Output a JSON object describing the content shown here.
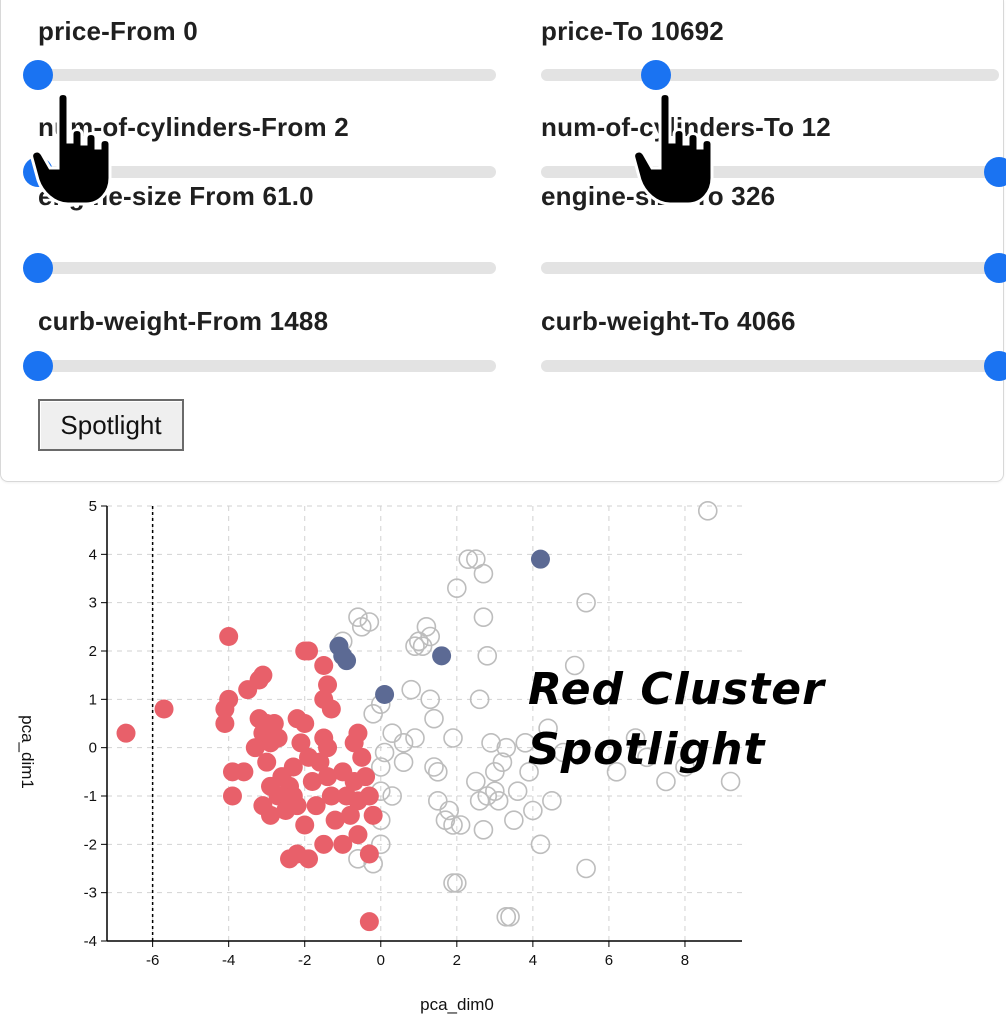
{
  "filters": [
    {
      "label": "price-From 0",
      "value": 0.0
    },
    {
      "label": "price-To 10692",
      "value": 0.25
    },
    {
      "label": "num-of-cylinders-From 2",
      "value": 0.0
    },
    {
      "label": "num-of-cylinders-To 12",
      "value": 1.0
    },
    {
      "label": "engine-size From 61.0",
      "value": 0.0
    },
    {
      "label": "engine-size-To 326",
      "value": 1.0
    },
    {
      "label": "curb-weight-From 1488",
      "value": 0.0
    },
    {
      "label": "curb-weight-To 4066",
      "value": 1.0
    }
  ],
  "spotlight_button": {
    "label": "Spotlight"
  },
  "annotation": {
    "line1": "Red Cluster",
    "line2": "Spotlight"
  },
  "icons": {
    "cursor": "pointing-hand-icon"
  },
  "colors": {
    "accent": "#1a73f2",
    "red_cluster": "#e8606a",
    "blue_highlight": "#5c6a94",
    "outline": "#bdbdbd"
  },
  "chart_data": {
    "type": "scatter",
    "xlabel": "pca_dim0",
    "ylabel": "pca_dim1",
    "xlim": [
      -7.2,
      9.5
    ],
    "ylim": [
      -4,
      5
    ],
    "xticks": [
      -6,
      -4,
      -2,
      0,
      2,
      4,
      6,
      8
    ],
    "yticks": [
      -4,
      -3,
      -2,
      -1,
      0,
      1,
      2,
      3,
      4,
      5
    ],
    "grid": true,
    "reference_line_x": -6,
    "series": [
      {
        "style": "red-filled",
        "points": [
          [
            -6.7,
            0.3
          ],
          [
            -5.7,
            0.8
          ],
          [
            -4.0,
            2.3
          ],
          [
            -4.1,
            0.8
          ],
          [
            -4.1,
            0.5
          ],
          [
            -4.0,
            1.0
          ],
          [
            -3.9,
            -0.5
          ],
          [
            -3.6,
            -0.5
          ],
          [
            -3.9,
            -1.0
          ],
          [
            -3.5,
            1.2
          ],
          [
            -3.2,
            1.4
          ],
          [
            -3.1,
            1.5
          ],
          [
            -3.2,
            0.6
          ],
          [
            -3.1,
            0.3
          ],
          [
            -3.0,
            0.5
          ],
          [
            -2.9,
            0.1
          ],
          [
            -3.3,
            0.0
          ],
          [
            -2.8,
            0.5
          ],
          [
            -2.7,
            0.2
          ],
          [
            -3.0,
            -0.3
          ],
          [
            -2.9,
            -0.8
          ],
          [
            -3.1,
            -1.2
          ],
          [
            -2.9,
            -1.4
          ],
          [
            -2.7,
            -1.0
          ],
          [
            -2.6,
            -0.6
          ],
          [
            -2.5,
            -1.3
          ],
          [
            -2.4,
            -0.8
          ],
          [
            -2.3,
            -0.4
          ],
          [
            -2.3,
            -1.0
          ],
          [
            -2.2,
            -1.2
          ],
          [
            -2.2,
            0.6
          ],
          [
            -2.1,
            0.1
          ],
          [
            -2.0,
            2.0
          ],
          [
            -1.9,
            2.0
          ],
          [
            -2.0,
            0.5
          ],
          [
            -1.9,
            -0.2
          ],
          [
            -1.8,
            -0.7
          ],
          [
            -1.7,
            -1.2
          ],
          [
            -2.0,
            -1.6
          ],
          [
            -2.2,
            -2.2
          ],
          [
            -2.4,
            -2.3
          ],
          [
            -1.9,
            -2.3
          ],
          [
            -1.6,
            -0.3
          ],
          [
            -1.5,
            0.2
          ],
          [
            -1.4,
            0.0
          ],
          [
            -1.5,
            1.0
          ],
          [
            -1.4,
            1.3
          ],
          [
            -1.5,
            1.7
          ],
          [
            -1.3,
            0.8
          ],
          [
            -1.4,
            -0.6
          ],
          [
            -1.3,
            -1.0
          ],
          [
            -1.2,
            -1.5
          ],
          [
            -1.0,
            -0.5
          ],
          [
            -0.9,
            -1.0
          ],
          [
            -0.8,
            -1.4
          ],
          [
            -0.7,
            -0.7
          ],
          [
            -0.6,
            -1.1
          ],
          [
            -0.7,
            0.1
          ],
          [
            -0.6,
            0.3
          ],
          [
            -0.5,
            -0.2
          ],
          [
            -0.4,
            -0.6
          ],
          [
            -0.3,
            -1.0
          ],
          [
            -0.2,
            -1.4
          ],
          [
            -0.6,
            -1.8
          ],
          [
            -0.3,
            -2.2
          ],
          [
            -1.0,
            -2.0
          ],
          [
            -1.5,
            -2.0
          ],
          [
            -0.3,
            -3.6
          ]
        ]
      },
      {
        "style": "blue-filled",
        "points": [
          [
            -1.1,
            2.1
          ],
          [
            -1.0,
            1.9
          ],
          [
            -0.9,
            1.8
          ],
          [
            0.1,
            1.1
          ],
          [
            1.6,
            1.9
          ],
          [
            4.2,
            3.9
          ]
        ]
      },
      {
        "style": "gray-outline",
        "points": [
          [
            -1.0,
            2.2
          ],
          [
            -0.6,
            2.7
          ],
          [
            -0.5,
            2.5
          ],
          [
            -0.3,
            2.6
          ],
          [
            -0.2,
            0.7
          ],
          [
            0.0,
            -0.4
          ],
          [
            0.1,
            -0.1
          ],
          [
            0.0,
            -0.9
          ],
          [
            0.3,
            -1.0
          ],
          [
            0.0,
            -1.5
          ],
          [
            0.0,
            -2.0
          ],
          [
            -0.2,
            -2.4
          ],
          [
            -0.6,
            -2.3
          ],
          [
            0.0,
            0.9
          ],
          [
            0.3,
            0.3
          ],
          [
            0.6,
            -0.3
          ],
          [
            0.6,
            0.1
          ],
          [
            0.8,
            1.2
          ],
          [
            0.9,
            0.2
          ],
          [
            0.9,
            2.1
          ],
          [
            1.0,
            2.2
          ],
          [
            1.1,
            2.1
          ],
          [
            1.2,
            2.5
          ],
          [
            1.3,
            2.3
          ],
          [
            1.3,
            1.0
          ],
          [
            1.4,
            0.6
          ],
          [
            1.4,
            -0.4
          ],
          [
            1.5,
            -0.5
          ],
          [
            1.5,
            -1.1
          ],
          [
            1.7,
            -1.5
          ],
          [
            1.8,
            -1.3
          ],
          [
            1.9,
            -1.6
          ],
          [
            1.9,
            -2.8
          ],
          [
            2.0,
            -2.8
          ],
          [
            2.0,
            3.3
          ],
          [
            2.1,
            -1.6
          ],
          [
            2.3,
            3.9
          ],
          [
            2.5,
            -0.7
          ],
          [
            2.6,
            -1.1
          ],
          [
            2.7,
            -1.7
          ],
          [
            2.6,
            1.0
          ],
          [
            2.7,
            2.7
          ],
          [
            2.8,
            -1.0
          ],
          [
            2.9,
            0.1
          ],
          [
            3.0,
            -0.9
          ],
          [
            3.0,
            -0.5
          ],
          [
            3.1,
            -1.1
          ],
          [
            3.2,
            -0.3
          ],
          [
            3.3,
            -3.5
          ],
          [
            3.4,
            -3.5
          ],
          [
            3.3,
            0.0
          ],
          [
            3.5,
            -1.5
          ],
          [
            3.6,
            -0.9
          ],
          [
            3.8,
            0.1
          ],
          [
            3.9,
            -0.5
          ],
          [
            4.0,
            -1.3
          ],
          [
            4.2,
            -2.0
          ],
          [
            4.4,
            0.4
          ],
          [
            4.5,
            -1.1
          ],
          [
            4.8,
            -0.1
          ],
          [
            5.1,
            1.7
          ],
          [
            5.4,
            3.0
          ],
          [
            5.4,
            -2.5
          ],
          [
            6.2,
            -0.5
          ],
          [
            6.7,
            0.2
          ],
          [
            7.0,
            -0.2
          ],
          [
            7.5,
            -0.7
          ],
          [
            8.0,
            -0.4
          ],
          [
            8.6,
            4.9
          ],
          [
            9.2,
            -0.7
          ],
          [
            2.8,
            1.9
          ],
          [
            2.5,
            3.9
          ],
          [
            2.7,
            3.6
          ],
          [
            1.9,
            0.2
          ]
        ]
      }
    ]
  }
}
